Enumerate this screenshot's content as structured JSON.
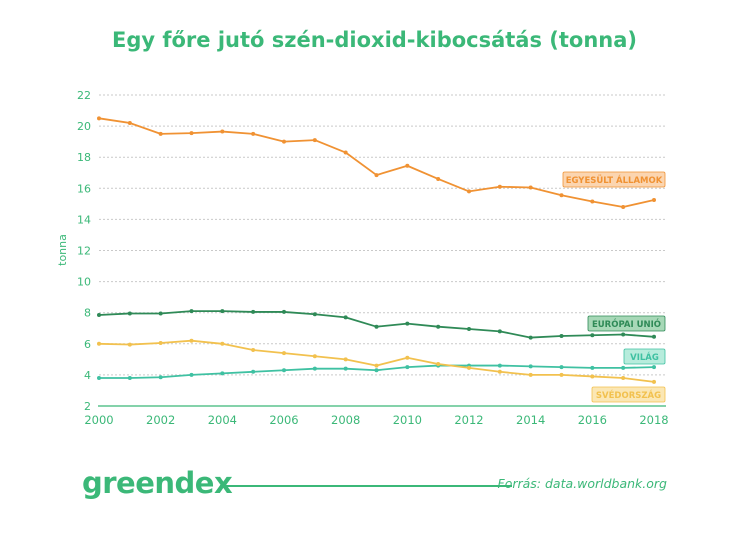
{
  "chart_data": {
    "type": "line",
    "title": "Egy főre jutó szén-dioxid-kibocsátás (tonna)",
    "ylabel": "tonna",
    "xlabel": "",
    "ylim": [
      2,
      22
    ],
    "xlim": [
      2000,
      2018
    ],
    "yticks": [
      2,
      4,
      6,
      8,
      10,
      12,
      14,
      16,
      18,
      20,
      22
    ],
    "xticks": [
      2000,
      2002,
      2004,
      2006,
      2008,
      2010,
      2012,
      2014,
      2016,
      2018
    ],
    "grid": true,
    "x": [
      2000,
      2001,
      2002,
      2003,
      2004,
      2005,
      2006,
      2007,
      2008,
      2009,
      2010,
      2011,
      2012,
      2013,
      2014,
      2015,
      2016,
      2017,
      2018
    ],
    "series": [
      {
        "name": "EGYESÜLT ÁLLAMOK",
        "color": "#f09233",
        "label_bg": "#fbd5b0",
        "values": [
          20.5,
          20.2,
          19.5,
          19.55,
          19.65,
          19.5,
          19.0,
          19.1,
          18.3,
          16.85,
          17.45,
          16.6,
          15.8,
          16.1,
          16.05,
          15.55,
          15.15,
          14.8,
          15.25
        ]
      },
      {
        "name": "EURÓPAI UNIÓ",
        "color": "#2f8a57",
        "label_bg": "#a7d8b7",
        "values": [
          7.85,
          7.95,
          7.95,
          8.1,
          8.1,
          8.05,
          8.05,
          7.9,
          7.7,
          7.1,
          7.3,
          7.1,
          6.95,
          6.8,
          6.4,
          6.5,
          6.55,
          6.6,
          6.45
        ]
      },
      {
        "name": "VILÁG",
        "color": "#3fc1a2",
        "label_bg": "#b7ecdc",
        "values": [
          3.8,
          3.8,
          3.85,
          4.0,
          4.1,
          4.2,
          4.3,
          4.4,
          4.4,
          4.3,
          4.5,
          4.6,
          4.6,
          4.6,
          4.55,
          4.5,
          4.45,
          4.45,
          4.5
        ]
      },
      {
        "name": "SVÉDORSZÁG",
        "color": "#f2c14e",
        "label_bg": "#fbe7b4",
        "values": [
          6.0,
          5.95,
          6.05,
          6.2,
          6.0,
          5.6,
          5.4,
          5.2,
          5.0,
          4.6,
          5.1,
          4.7,
          4.45,
          4.2,
          4.0,
          4.0,
          3.9,
          3.8,
          3.55
        ]
      }
    ]
  },
  "footer": {
    "logo": "greendex",
    "source": "Forrás: data.worldbank.org"
  }
}
